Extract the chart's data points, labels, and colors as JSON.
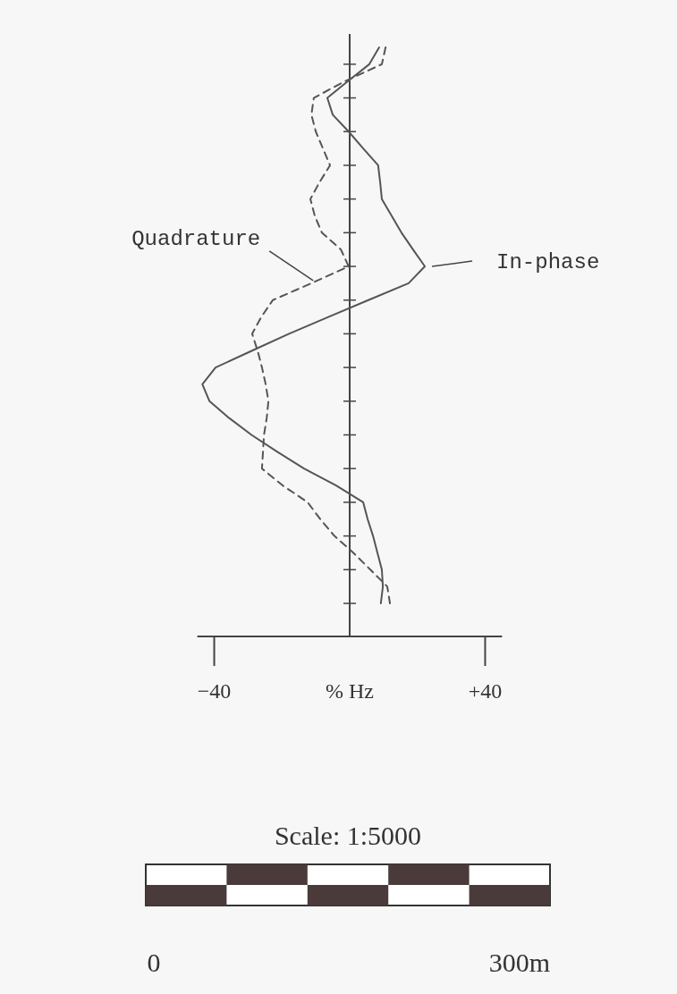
{
  "chart_data": {
    "type": "line",
    "orientation": "horizontal",
    "xlabel": "% Hz",
    "categories": [
      null,
      null,
      null,
      null,
      null,
      null,
      null,
      null,
      null,
      null,
      null,
      null,
      null,
      null,
      null,
      null,
      null,
      null,
      null,
      null,
      null,
      null,
      null,
      null,
      null,
      null,
      null,
      null,
      null,
      null,
      null,
      null,
      null,
      null
    ],
    "series": [
      {
        "name": "In-phase",
        "color": "#555555",
        "line_style": "solid",
        "values": [
          8.7,
          5.8,
          -0.5,
          -6.6,
          -5.0,
          -0.3,
          4.0,
          8.4,
          9.0,
          9.5,
          12.4,
          15.3,
          18.7,
          22.2,
          17.4,
          5.5,
          -6.3,
          -17.9,
          -28.8,
          -39.6,
          -43.5,
          -41.4,
          -35.6,
          -29.0,
          -21.4,
          -13.5,
          -4.0,
          4.0,
          5.3,
          6.9,
          8.2,
          9.5,
          9.8,
          9.2
        ]
      },
      {
        "name": "Quadrature",
        "color": "#555555",
        "line_style": "dashed",
        "values": [
          10.6,
          9.5,
          -1.3,
          -10.6,
          -11.3,
          -10.0,
          -7.9,
          -5.8,
          -8.9,
          -11.6,
          -10.3,
          -8.2,
          -2.6,
          -0.3,
          -11.3,
          -22.7,
          -26.1,
          -28.8,
          -27.2,
          -25.9,
          -24.8,
          -24.0,
          -24.5,
          -25.3,
          -25.6,
          -25.9,
          -19.8,
          -12.4,
          -8.7,
          -4.5,
          1.1,
          6.1,
          11.1,
          11.9
        ]
      }
    ],
    "xlim": [
      -45,
      45
    ],
    "xticks": [
      {
        "value": -40,
        "label": "−40"
      },
      {
        "value": 40,
        "label": "+40"
      }
    ],
    "annotations": [
      "Scale: 1:5000",
      "0",
      "300m"
    ]
  }
}
